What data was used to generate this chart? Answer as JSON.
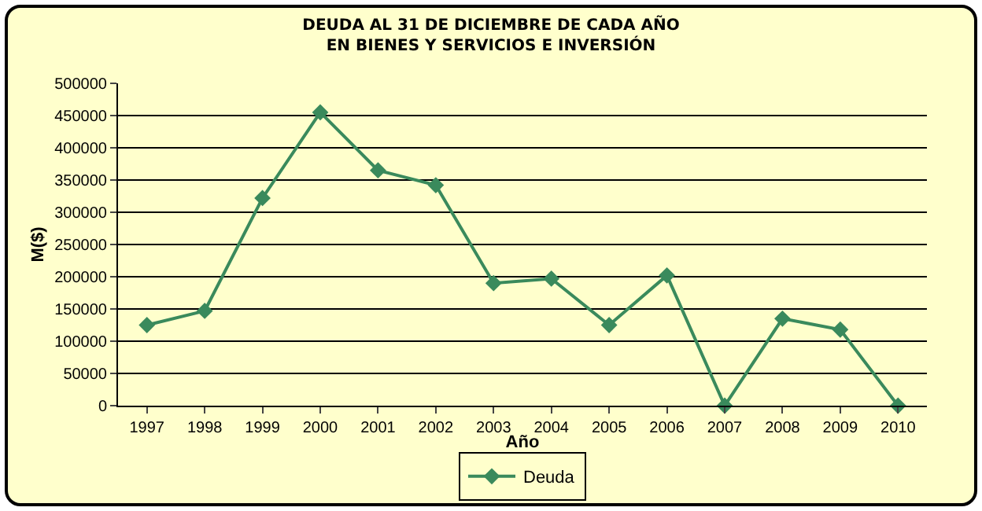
{
  "chart_data": {
    "type": "line",
    "title": "DEUDA AL 31 DE DICIEMBRE DE CADA AÑO\nEN BIENES Y SERVICIOS E INVERSIÓN",
    "xlabel": "Año",
    "ylabel": "M($)",
    "categories": [
      "1997",
      "1998",
      "1999",
      "2000",
      "2001",
      "2002",
      "2003",
      "2004",
      "2005",
      "2006",
      "2007",
      "2008",
      "2009",
      "2010"
    ],
    "series": [
      {
        "name": "Deuda",
        "color": "#3a8a5c",
        "values": [
          125000,
          147000,
          322000,
          455000,
          365000,
          342000,
          190000,
          197000,
          125000,
          202000,
          0,
          135000,
          118000,
          0
        ]
      }
    ],
    "ylim": [
      0,
      500000
    ],
    "yticks": [
      0,
      50000,
      100000,
      150000,
      200000,
      250000,
      300000,
      350000,
      400000,
      450000,
      500000
    ],
    "grid": "y",
    "legend": "bottom",
    "marker": "diamond",
    "line_style": "solid"
  }
}
